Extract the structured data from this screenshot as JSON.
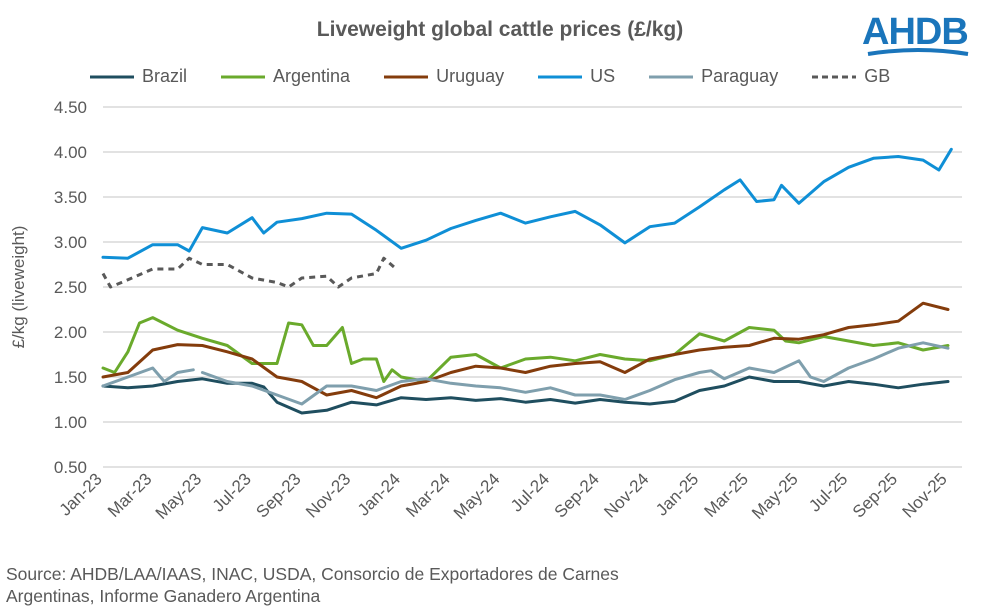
{
  "logo_text": "AHDB",
  "source": [
    "Source: AHDB/LAA/IAAS, INAC, USDA, Consorcio de Exportadores de Carnes",
    "Argentinas, Informe Ganadero Argentina"
  ],
  "chart_data": {
    "type": "line",
    "title": "Liveweight global cattle prices (£/kg)",
    "xlabel": "",
    "ylabel": "£/kg (liveweight)",
    "ylim": [
      0.5,
      4.5
    ],
    "yticks": [
      "0.50",
      "1.00",
      "1.50",
      "2.00",
      "2.50",
      "3.00",
      "3.50",
      "4.00",
      "4.50"
    ],
    "xticks": [
      "Jan-23",
      "Mar-23",
      "May-23",
      "Jul-23",
      "Sep-23",
      "Nov-23",
      "Jan-24",
      "Mar-24",
      "May-24",
      "Jul-24",
      "Sep-24",
      "Nov-24",
      "Jan-25",
      "Mar-25",
      "May-25",
      "Jul-25",
      "Sep-25",
      "Nov-25"
    ],
    "grid": true,
    "legend": "top",
    "series": [
      {
        "name": "Brazil",
        "color": "#1f4e5f",
        "dash": false,
        "x": [
          "2023-01-01",
          "2023-02-01",
          "2023-03-01",
          "2023-04-01",
          "2023-05-01",
          "2023-06-01",
          "2023-07-01",
          "2023-07-15",
          "2023-08-01",
          "2023-09-01",
          "2023-10-01",
          "2023-11-01",
          "2023-12-01",
          "2024-01-01",
          "2024-02-01",
          "2024-03-01",
          "2024-04-01",
          "2024-05-01",
          "2024-06-01",
          "2024-07-01",
          "2024-08-01",
          "2024-09-01",
          "2024-10-01",
          "2024-11-01",
          "2024-12-01",
          "2025-01-01",
          "2025-02-01",
          "2025-03-01",
          "2025-04-01",
          "2025-05-01",
          "2025-06-01",
          "2025-07-01",
          "2025-08-01",
          "2025-09-01",
          "2025-10-01",
          "2025-11-01"
        ],
        "y": [
          1.4,
          1.38,
          1.4,
          1.45,
          1.48,
          1.43,
          1.43,
          1.39,
          1.22,
          1.1,
          1.13,
          1.22,
          1.19,
          1.27,
          1.25,
          1.27,
          1.24,
          1.26,
          1.22,
          1.25,
          1.21,
          1.25,
          1.22,
          1.2,
          1.23,
          1.35,
          1.4,
          1.5,
          1.45,
          1.45,
          1.4,
          1.45,
          1.42,
          1.38,
          1.42,
          1.45
        ]
      },
      {
        "name": "Argentina",
        "color": "#6aaa2c",
        "dash": false,
        "x": [
          "2023-01-01",
          "2023-01-15",
          "2023-02-01",
          "2023-02-15",
          "2023-03-01",
          "2023-04-01",
          "2023-05-01",
          "2023-06-01",
          "2023-07-01",
          "2023-08-01",
          "2023-08-15",
          "2023-09-01",
          "2023-09-15",
          "2023-10-01",
          "2023-10-20",
          "2023-11-01",
          "2023-11-15",
          "2023-12-01",
          "2023-12-10",
          "2023-12-20",
          "2024-01-01",
          "2024-02-01",
          "2024-03-01",
          "2024-04-01",
          "2024-05-01",
          "2024-06-01",
          "2024-07-01",
          "2024-08-01",
          "2024-09-01",
          "2024-10-01",
          "2024-11-01",
          "2024-12-01",
          "2025-01-01",
          "2025-02-01",
          "2025-03-01",
          "2025-04-01",
          "2025-04-15",
          "2025-05-01",
          "2025-06-01",
          "2025-07-01",
          "2025-08-01",
          "2025-09-01",
          "2025-10-01",
          "2025-11-01"
        ],
        "y": [
          1.6,
          1.55,
          1.78,
          2.1,
          2.16,
          2.02,
          1.93,
          1.85,
          1.65,
          1.65,
          2.1,
          2.08,
          1.85,
          1.85,
          2.05,
          1.65,
          1.7,
          1.7,
          1.45,
          1.58,
          1.5,
          1.45,
          1.72,
          1.75,
          1.6,
          1.7,
          1.72,
          1.68,
          1.75,
          1.7,
          1.68,
          1.75,
          1.98,
          1.9,
          2.05,
          2.02,
          1.9,
          1.88,
          1.95,
          1.9,
          1.85,
          1.88,
          1.8,
          1.85
        ]
      },
      {
        "name": "Uruguay",
        "color": "#843c0c",
        "dash": false,
        "x": [
          "2023-01-01",
          "2023-02-01",
          "2023-03-01",
          "2023-04-01",
          "2023-05-01",
          "2023-06-01",
          "2023-07-01",
          "2023-08-01",
          "2023-09-01",
          "2023-10-01",
          "2023-11-01",
          "2023-12-01",
          "2024-01-01",
          "2024-02-01",
          "2024-03-01",
          "2024-04-01",
          "2024-05-01",
          "2024-06-01",
          "2024-07-01",
          "2024-08-01",
          "2024-09-01",
          "2024-10-01",
          "2024-11-01",
          "2024-12-01",
          "2025-01-01",
          "2025-02-01",
          "2025-03-01",
          "2025-04-01",
          "2025-05-01",
          "2025-06-01",
          "2025-07-01",
          "2025-08-01",
          "2025-09-01",
          "2025-10-01",
          "2025-11-01"
        ],
        "y": [
          1.5,
          1.55,
          1.8,
          1.86,
          1.85,
          1.78,
          1.7,
          1.5,
          1.45,
          1.3,
          1.35,
          1.27,
          1.4,
          1.45,
          1.55,
          1.62,
          1.6,
          1.55,
          1.62,
          1.65,
          1.67,
          1.55,
          1.7,
          1.75,
          1.8,
          1.83,
          1.85,
          1.93,
          1.92,
          1.97,
          2.05,
          2.08,
          2.12,
          2.32,
          2.25
        ]
      },
      {
        "name": "US",
        "color": "#0f8fd6",
        "dash": false,
        "x": [
          "2023-01-01",
          "2023-02-01",
          "2023-03-01",
          "2023-04-01",
          "2023-04-15",
          "2023-05-01",
          "2023-06-01",
          "2023-07-01",
          "2023-07-15",
          "2023-08-01",
          "2023-09-01",
          "2023-10-01",
          "2023-11-01",
          "2023-12-01",
          "2024-01-01",
          "2024-02-01",
          "2024-03-01",
          "2024-04-01",
          "2024-05-01",
          "2024-06-01",
          "2024-07-01",
          "2024-08-01",
          "2024-09-01",
          "2024-10-01",
          "2024-11-01",
          "2024-12-01",
          "2025-01-01",
          "2025-02-01",
          "2025-02-20",
          "2025-03-10",
          "2025-04-01",
          "2025-04-10",
          "2025-05-01",
          "2025-06-01",
          "2025-07-01",
          "2025-08-01",
          "2025-09-01",
          "2025-10-01",
          "2025-10-20",
          "2025-11-05"
        ],
        "y": [
          2.83,
          2.82,
          2.97,
          2.97,
          2.9,
          3.16,
          3.1,
          3.27,
          3.1,
          3.22,
          3.26,
          3.32,
          3.31,
          3.13,
          2.93,
          3.02,
          3.15,
          3.24,
          3.32,
          3.21,
          3.28,
          3.34,
          3.19,
          2.99,
          3.17,
          3.21,
          3.39,
          3.58,
          3.69,
          3.45,
          3.47,
          3.63,
          3.43,
          3.67,
          3.83,
          3.93,
          3.95,
          3.91,
          3.8,
          4.03
        ]
      },
      {
        "name": "Paraguay",
        "color": "#7f9fad",
        "dash": false,
        "x": [
          "2023-01-01",
          "2023-02-01",
          "2023-03-01",
          "2023-03-15",
          "2023-04-01",
          "2023-04-20",
          "2023-04-25",
          "2023-05-01",
          "2023-06-01",
          "2023-07-01",
          "2023-08-01",
          "2023-09-01",
          "2023-10-01",
          "2023-11-01",
          "2023-12-01",
          "2024-01-01",
          "2024-02-01",
          "2024-03-01",
          "2024-04-01",
          "2024-05-01",
          "2024-06-01",
          "2024-07-01",
          "2024-08-01",
          "2024-09-01",
          "2024-10-01",
          "2024-11-01",
          "2024-12-01",
          "2025-01-01",
          "2025-01-15",
          "2025-02-01",
          "2025-03-01",
          "2025-04-01",
          "2025-05-01",
          "2025-05-15",
          "2025-06-01",
          "2025-07-01",
          "2025-08-01",
          "2025-09-01",
          "2025-10-01",
          "2025-11-01"
        ],
        "y": [
          1.4,
          1.5,
          1.6,
          1.45,
          1.55,
          1.58,
          null,
          1.55,
          1.45,
          1.4,
          1.3,
          1.2,
          1.4,
          1.4,
          1.35,
          1.45,
          1.48,
          1.43,
          1.4,
          1.38,
          1.33,
          1.38,
          1.3,
          1.3,
          1.25,
          1.35,
          1.47,
          1.55,
          1.57,
          1.48,
          1.6,
          1.55,
          1.68,
          1.5,
          1.45,
          1.6,
          1.7,
          1.82,
          1.88,
          1.82
        ]
      },
      {
        "name": "GB",
        "color": "#595959",
        "dash": true,
        "x": [
          "2023-01-01",
          "2023-01-10",
          "2023-02-01",
          "2023-03-01",
          "2023-04-01",
          "2023-04-15",
          "2023-05-01",
          "2023-06-01",
          "2023-07-01",
          "2023-08-01",
          "2023-08-15",
          "2023-09-01",
          "2023-10-01",
          "2023-10-15",
          "2023-11-01",
          "2023-12-01",
          "2023-12-10",
          "2023-12-25"
        ],
        "y": [
          2.65,
          2.5,
          2.58,
          2.7,
          2.7,
          2.82,
          2.75,
          2.75,
          2.6,
          2.55,
          2.5,
          2.6,
          2.62,
          2.5,
          2.6,
          2.65,
          2.82,
          2.7
        ]
      }
    ]
  }
}
